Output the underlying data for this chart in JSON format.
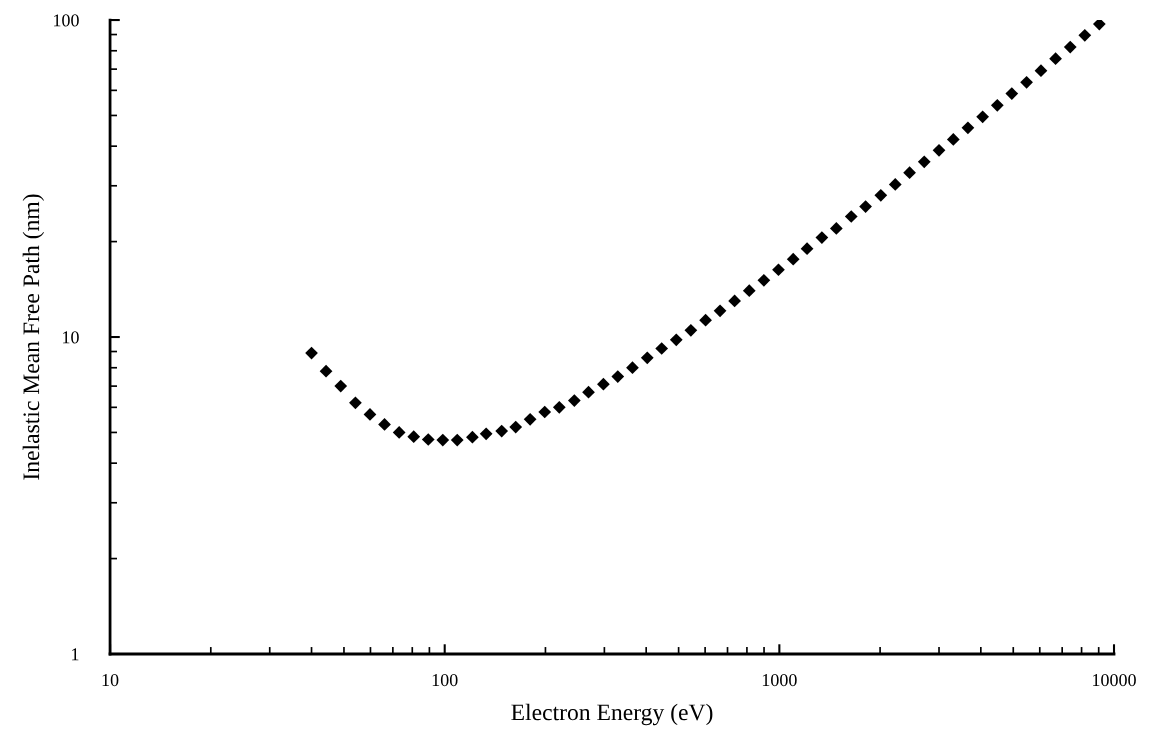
{
  "chart_data": {
    "type": "scatter",
    "xlabel": "Electron Energy (eV)",
    "ylabel": "Inelastic Mean Free Path (nm)",
    "log": "xy",
    "xlim": [
      10,
      10000
    ],
    "ylim": [
      1,
      100
    ],
    "xticks": [
      10,
      100,
      1000,
      10000
    ],
    "yticks": [
      1,
      10,
      100
    ],
    "grid": false,
    "marker": "diamond",
    "series": [
      {
        "color": "#000000",
        "x": [
          40,
          44.2,
          48.9,
          54.1,
          59.8,
          66.1,
          73.1,
          80.8,
          89.3,
          98.7,
          109,
          121,
          133,
          148,
          163,
          180,
          199,
          220,
          244,
          269,
          298,
          329,
          364,
          403,
          445,
          492,
          544,
          602,
          665,
          735,
          813,
          899,
          994,
          1100,
          1210,
          1340,
          1480,
          1640,
          1810,
          2010,
          2220,
          2450,
          2710,
          3000,
          3310,
          3660,
          4050,
          4480,
          4950,
          5480,
          6050,
          6690,
          7400,
          8180,
          9040
        ],
        "values": [
          8.9,
          7.8,
          7.0,
          6.2,
          5.7,
          5.3,
          5.0,
          4.85,
          4.75,
          4.73,
          4.73,
          4.83,
          4.95,
          5.05,
          5.2,
          5.5,
          5.8,
          6.0,
          6.3,
          6.7,
          7.1,
          7.5,
          8.0,
          8.6,
          9.2,
          9.8,
          10.5,
          11.3,
          12.1,
          13.0,
          14.0,
          15.1,
          16.3,
          17.6,
          19.0,
          20.6,
          22.0,
          24.0,
          25.8,
          28.0,
          30.3,
          33.0,
          35.7,
          38.8,
          42.0,
          45.7,
          49.5,
          53.8,
          58.6,
          63.6,
          69.2,
          75.5,
          82.2,
          89.5,
          97.1
        ]
      }
    ]
  }
}
